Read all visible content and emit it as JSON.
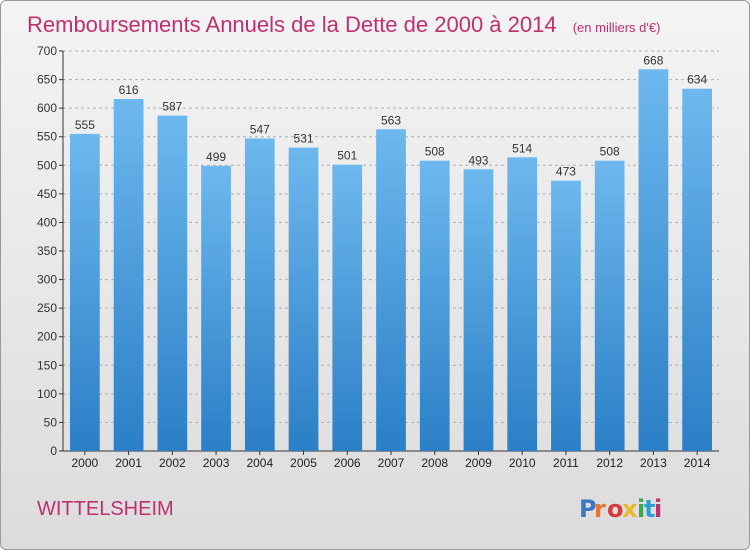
{
  "header": {
    "title": "Remboursements Annuels de la Dette de 2000 à 2014",
    "unit": "(en milliers d'€)"
  },
  "footer": {
    "commune": "WITTELSHEIM",
    "logo_text": "Proxiti"
  },
  "colors": {
    "title": "#c0306e",
    "bar_top": "#6db8ee",
    "bar_bottom": "#2b7fc6",
    "axis": "#333333",
    "grid": "#b0b0b0"
  },
  "chart_data": {
    "type": "bar",
    "title": "Remboursements Annuels de la Dette de 2000 à 2014",
    "subtitle": "(en milliers d'€)",
    "xlabel": "",
    "ylabel": "",
    "categories": [
      "2000",
      "2001",
      "2002",
      "2003",
      "2004",
      "2005",
      "2006",
      "2007",
      "2008",
      "2009",
      "2010",
      "2011",
      "2012",
      "2013",
      "2014"
    ],
    "values": [
      555,
      616,
      587,
      499,
      547,
      531,
      501,
      563,
      508,
      493,
      514,
      473,
      508,
      668,
      634
    ],
    "ylim": [
      0,
      700
    ],
    "yticks": [
      0,
      50,
      100,
      150,
      200,
      250,
      300,
      350,
      400,
      450,
      500,
      550,
      600,
      650,
      700
    ],
    "grid": true,
    "grid_style": "dashed-horizontal"
  }
}
